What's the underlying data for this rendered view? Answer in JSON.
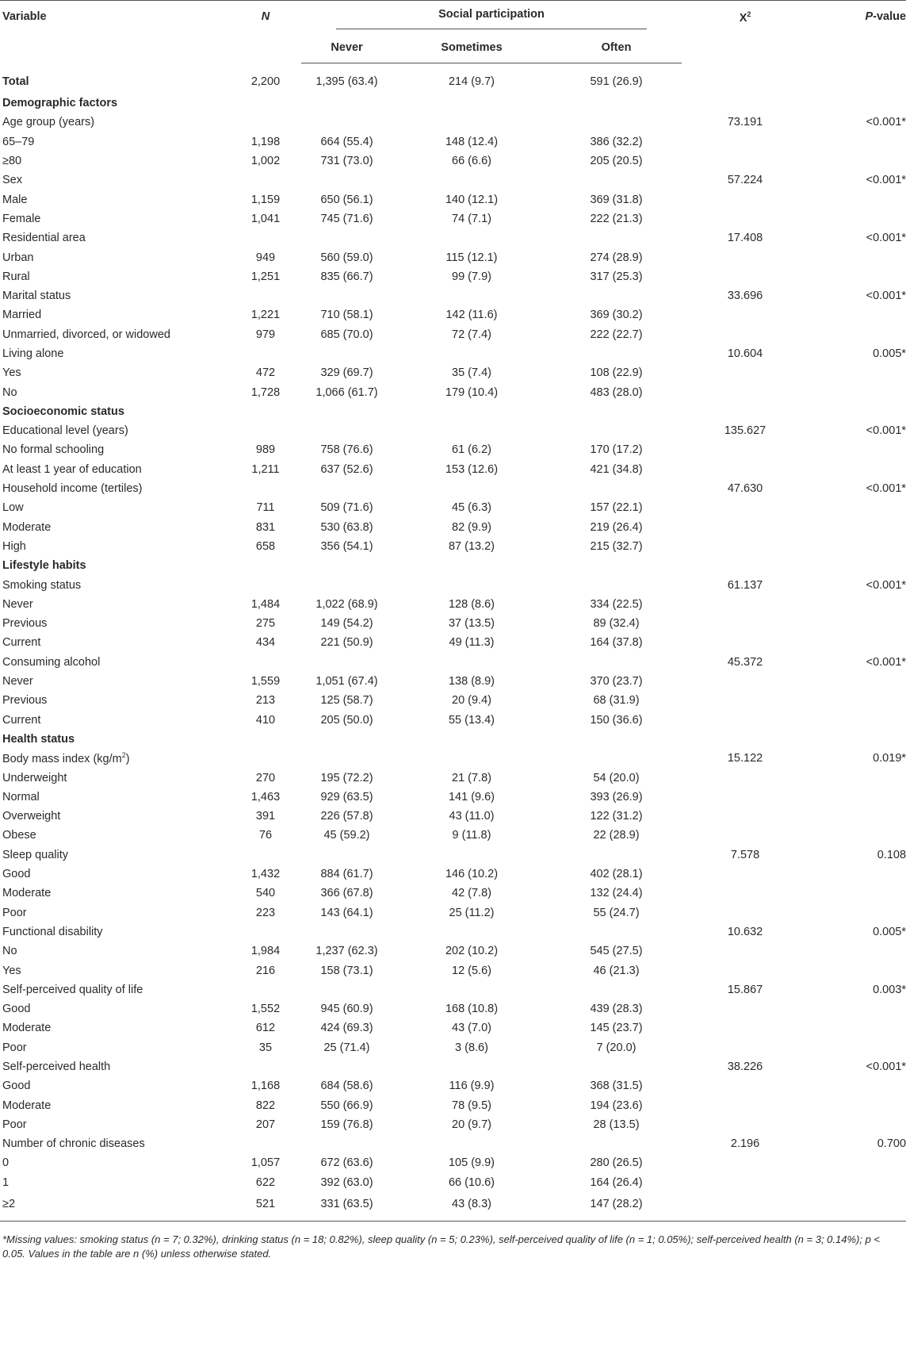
{
  "header": {
    "variable": "Variable",
    "n": "N",
    "group": "Social participation",
    "never": "Never",
    "sometimes": "Sometimes",
    "often": "Often",
    "x2": "X",
    "x2_sup": "2",
    "p_value_italic": "P",
    "p_value_rest": "-value"
  },
  "rows": [
    {
      "type": "total",
      "label": "Total",
      "n": "2,200",
      "never": "1,395 (63.4)",
      "sometimes": "214 (9.7)",
      "often": "591 (26.9)",
      "x2": "",
      "p": ""
    },
    {
      "type": "section",
      "label": "Demographic factors"
    },
    {
      "type": "var",
      "label": "Age group (years)",
      "n": "",
      "never": "",
      "sometimes": "",
      "often": "",
      "x2": "73.191",
      "p": "<0.001*"
    },
    {
      "type": "row",
      "label": "65–79",
      "n": "1,198",
      "never": "664 (55.4)",
      "sometimes": "148 (12.4)",
      "often": "386 (32.2)",
      "x2": "",
      "p": ""
    },
    {
      "type": "row",
      "label": "≥80",
      "n": "1,002",
      "never": "731 (73.0)",
      "sometimes": "66 (6.6)",
      "often": "205 (20.5)",
      "x2": "",
      "p": ""
    },
    {
      "type": "var",
      "label": "Sex",
      "n": "",
      "never": "",
      "sometimes": "",
      "often": "",
      "x2": "57.224",
      "p": "<0.001*"
    },
    {
      "type": "row",
      "label": "Male",
      "n": "1,159",
      "never": "650 (56.1)",
      "sometimes": "140 (12.1)",
      "often": "369 (31.8)",
      "x2": "",
      "p": ""
    },
    {
      "type": "row",
      "label": "Female",
      "n": "1,041",
      "never": "745 (71.6)",
      "sometimes": "74 (7.1)",
      "often": "222 (21.3)",
      "x2": "",
      "p": ""
    },
    {
      "type": "var",
      "label": "Residential area",
      "n": "",
      "never": "",
      "sometimes": "",
      "often": "",
      "x2": "17.408",
      "p": "<0.001*"
    },
    {
      "type": "row",
      "label": "Urban",
      "n": "949",
      "never": "560 (59.0)",
      "sometimes": "115 (12.1)",
      "often": "274 (28.9)",
      "x2": "",
      "p": ""
    },
    {
      "type": "row",
      "label": "Rural",
      "n": "1,251",
      "never": "835 (66.7)",
      "sometimes": "99 (7.9)",
      "often": "317 (25.3)",
      "x2": "",
      "p": ""
    },
    {
      "type": "var",
      "label": "Marital status",
      "n": "",
      "never": "",
      "sometimes": "",
      "often": "",
      "x2": "33.696",
      "p": "<0.001*"
    },
    {
      "type": "row",
      "label": "Married",
      "n": "1,221",
      "never": "710 (58.1)",
      "sometimes": "142 (11.6)",
      "often": "369 (30.2)",
      "x2": "",
      "p": ""
    },
    {
      "type": "row",
      "label": "Unmarried, divorced, or widowed",
      "n": "979",
      "never": "685 (70.0)",
      "sometimes": "72 (7.4)",
      "often": "222 (22.7)",
      "x2": "",
      "p": ""
    },
    {
      "type": "var",
      "label": "Living alone",
      "n": "",
      "never": "",
      "sometimes": "",
      "often": "",
      "x2": "10.604",
      "p": "0.005*"
    },
    {
      "type": "row",
      "label": "Yes",
      "n": "472",
      "never": "329 (69.7)",
      "sometimes": "35 (7.4)",
      "often": "108 (22.9)",
      "x2": "",
      "p": ""
    },
    {
      "type": "row",
      "label": "No",
      "n": "1,728",
      "never": "1,066 (61.7)",
      "sometimes": "179 (10.4)",
      "often": "483 (28.0)",
      "x2": "",
      "p": ""
    },
    {
      "type": "section",
      "label": "Socioeconomic status"
    },
    {
      "type": "var",
      "label": "Educational level (years)",
      "n": "",
      "never": "",
      "sometimes": "",
      "often": "",
      "x2": "135.627",
      "p": "<0.001*"
    },
    {
      "type": "row",
      "label": "No formal schooling",
      "n": "989",
      "never": "758 (76.6)",
      "sometimes": "61 (6.2)",
      "often": "170 (17.2)",
      "x2": "",
      "p": ""
    },
    {
      "type": "row",
      "label": "At least 1 year of education",
      "n": "1,211",
      "never": "637 (52.6)",
      "sometimes": "153 (12.6)",
      "often": "421 (34.8)",
      "x2": "",
      "p": ""
    },
    {
      "type": "var",
      "label": "Household income (tertiles)",
      "n": "",
      "never": "",
      "sometimes": "",
      "often": "",
      "x2": "47.630",
      "p": "<0.001*"
    },
    {
      "type": "row",
      "label": "Low",
      "n": "711",
      "never": "509 (71.6)",
      "sometimes": "45 (6.3)",
      "often": "157 (22.1)",
      "x2": "",
      "p": ""
    },
    {
      "type": "row",
      "label": "Moderate",
      "n": "831",
      "never": "530 (63.8)",
      "sometimes": "82 (9.9)",
      "often": "219 (26.4)",
      "x2": "",
      "p": ""
    },
    {
      "type": "row",
      "label": "High",
      "n": "658",
      "never": "356 (54.1)",
      "sometimes": "87 (13.2)",
      "often": "215 (32.7)",
      "x2": "",
      "p": ""
    },
    {
      "type": "section",
      "label": "Lifestyle habits"
    },
    {
      "type": "var",
      "label": "Smoking status",
      "n": "",
      "never": "",
      "sometimes": "",
      "often": "",
      "x2": "61.137",
      "p": "<0.001*"
    },
    {
      "type": "row",
      "label": "Never",
      "n": "1,484",
      "never": "1,022 (68.9)",
      "sometimes": "128 (8.6)",
      "often": "334 (22.5)",
      "x2": "",
      "p": ""
    },
    {
      "type": "row",
      "label": "Previous",
      "n": "275",
      "never": "149 (54.2)",
      "sometimes": "37 (13.5)",
      "often": "89 (32.4)",
      "x2": "",
      "p": ""
    },
    {
      "type": "row",
      "label": "Current",
      "n": "434",
      "never": "221 (50.9)",
      "sometimes": "49 (11.3)",
      "often": "164 (37.8)",
      "x2": "",
      "p": ""
    },
    {
      "type": "var",
      "label": "Consuming alcohol",
      "n": "",
      "never": "",
      "sometimes": "",
      "often": "",
      "x2": "45.372",
      "p": "<0.001*"
    },
    {
      "type": "row",
      "label": "Never",
      "n": "1,559",
      "never": "1,051 (67.4)",
      "sometimes": "138 (8.9)",
      "often": "370 (23.7)",
      "x2": "",
      "p": ""
    },
    {
      "type": "row",
      "label": "Previous",
      "n": "213",
      "never": "125 (58.7)",
      "sometimes": "20 (9.4)",
      "often": "68 (31.9)",
      "x2": "",
      "p": ""
    },
    {
      "type": "row",
      "label": "Current",
      "n": "410",
      "never": "205 (50.0)",
      "sometimes": "55 (13.4)",
      "often": "150 (36.6)",
      "x2": "",
      "p": ""
    },
    {
      "type": "section",
      "label": "Health status"
    },
    {
      "type": "var",
      "label": "Body mass index (kg/m",
      "label_sup": "2",
      "label_tail": ")",
      "n": "",
      "never": "",
      "sometimes": "",
      "often": "",
      "x2": "15.122",
      "p": "0.019*"
    },
    {
      "type": "row",
      "label": "Underweight",
      "n": "270",
      "never": "195 (72.2)",
      "sometimes": "21 (7.8)",
      "often": "54 (20.0)",
      "x2": "",
      "p": ""
    },
    {
      "type": "row",
      "label": "Normal",
      "n": "1,463",
      "never": "929 (63.5)",
      "sometimes": "141 (9.6)",
      "often": "393 (26.9)",
      "x2": "",
      "p": ""
    },
    {
      "type": "row",
      "label": "Overweight",
      "n": "391",
      "never": "226 (57.8)",
      "sometimes": "43 (11.0)",
      "often": "122 (31.2)",
      "x2": "",
      "p": ""
    },
    {
      "type": "row",
      "label": "Obese",
      "n": "76",
      "never": "45 (59.2)",
      "sometimes": "9 (11.8)",
      "often": "22 (28.9)",
      "x2": "",
      "p": ""
    },
    {
      "type": "var",
      "label": "Sleep quality",
      "n": "",
      "never": "",
      "sometimes": "",
      "often": "",
      "x2": "7.578",
      "p": "0.108"
    },
    {
      "type": "row",
      "label": "Good",
      "n": "1,432",
      "never": "884 (61.7)",
      "sometimes": "146 (10.2)",
      "often": "402 (28.1)",
      "x2": "",
      "p": ""
    },
    {
      "type": "row",
      "label": "Moderate",
      "n": "540",
      "never": "366 (67.8)",
      "sometimes": "42 (7.8)",
      "often": "132 (24.4)",
      "x2": "",
      "p": ""
    },
    {
      "type": "row",
      "label": "Poor",
      "n": "223",
      "never": "143 (64.1)",
      "sometimes": "25 (11.2)",
      "often": "55 (24.7)",
      "x2": "",
      "p": ""
    },
    {
      "type": "var",
      "label": "Functional disability",
      "n": "",
      "never": "",
      "sometimes": "",
      "often": "",
      "x2": "10.632",
      "p": "0.005*"
    },
    {
      "type": "row",
      "label": "No",
      "n": "1,984",
      "never": "1,237 (62.3)",
      "sometimes": "202 (10.2)",
      "often": "545 (27.5)",
      "x2": "",
      "p": ""
    },
    {
      "type": "row",
      "label": "Yes",
      "n": "216",
      "never": "158 (73.1)",
      "sometimes": "12 (5.6)",
      "often": "46 (21.3)",
      "x2": "",
      "p": ""
    },
    {
      "type": "var",
      "label": "Self-perceived quality of life",
      "n": "",
      "never": "",
      "sometimes": "",
      "often": "",
      "x2": "15.867",
      "p": "0.003*"
    },
    {
      "type": "row",
      "label": "Good",
      "n": "1,552",
      "never": "945 (60.9)",
      "sometimes": "168 (10.8)",
      "often": "439 (28.3)",
      "x2": "",
      "p": ""
    },
    {
      "type": "row",
      "label": "Moderate",
      "n": "612",
      "never": "424 (69.3)",
      "sometimes": "43 (7.0)",
      "often": "145 (23.7)",
      "x2": "",
      "p": ""
    },
    {
      "type": "row",
      "label": "Poor",
      "n": "35",
      "never": "25 (71.4)",
      "sometimes": "3 (8.6)",
      "often": "7 (20.0)",
      "x2": "",
      "p": ""
    },
    {
      "type": "var",
      "label": "Self-perceived health",
      "n": "",
      "never": "",
      "sometimes": "",
      "often": "",
      "x2": "38.226",
      "p": "<0.001*"
    },
    {
      "type": "row",
      "label": "Good",
      "n": "1,168",
      "never": "684 (58.6)",
      "sometimes": "116 (9.9)",
      "often": "368 (31.5)",
      "x2": "",
      "p": ""
    },
    {
      "type": "row",
      "label": "Moderate",
      "n": "822",
      "never": "550 (66.9)",
      "sometimes": "78 (9.5)",
      "often": "194 (23.6)",
      "x2": "",
      "p": ""
    },
    {
      "type": "row",
      "label": "Poor",
      "n": "207",
      "never": "159 (76.8)",
      "sometimes": "20 (9.7)",
      "often": "28 (13.5)",
      "x2": "",
      "p": ""
    },
    {
      "type": "var",
      "label": "Number of chronic diseases",
      "n": "",
      "never": "",
      "sometimes": "",
      "often": "",
      "x2": "2.196",
      "p": "0.700"
    },
    {
      "type": "row",
      "label": "0",
      "n": "1,057",
      "never": "672 (63.6)",
      "sometimes": "105 (9.9)",
      "often": "280 (26.5)",
      "x2": "",
      "p": ""
    },
    {
      "type": "row",
      "label": "1",
      "n": "622",
      "never": "392 (63.0)",
      "sometimes": "66 (10.6)",
      "often": "164 (26.4)",
      "x2": "",
      "p": ""
    },
    {
      "type": "row",
      "label": "≥2",
      "n": "521",
      "never": "331 (63.5)",
      "sometimes": "43 (8.3)",
      "often": "147 (28.2)",
      "x2": "",
      "p": ""
    }
  ],
  "footnote": "*Missing values: smoking status (n = 7; 0.32%), drinking status (n = 18; 0.82%), sleep quality (n = 5; 0.23%), self-perceived quality of life (n = 1; 0.05%); self-perceived health (n = 3; 0.14%); p < 0.05. Values in the table are n (%) unless otherwise stated."
}
